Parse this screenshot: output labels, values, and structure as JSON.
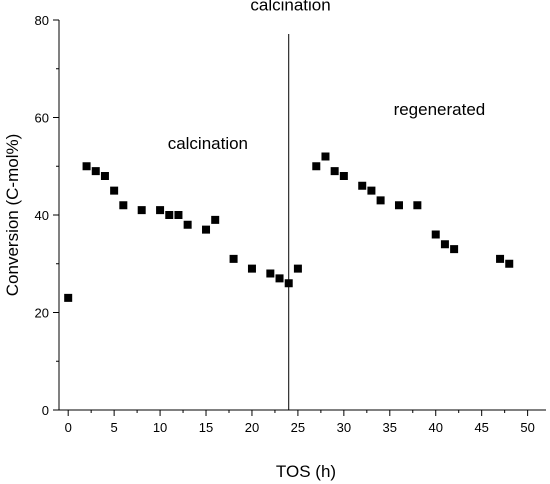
{
  "chart_data": {
    "type": "scatter",
    "xlabel": "TOS (h)",
    "ylabel": "Conversion (C-mol%)",
    "xlim": [
      -1,
      52
    ],
    "ylim": [
      0,
      80
    ],
    "x_ticks": [
      0,
      5,
      10,
      15,
      20,
      25,
      30,
      35,
      40,
      45,
      50
    ],
    "y_ticks": [
      0,
      20,
      40,
      60,
      80
    ],
    "marker": "square",
    "marker_color": "#000000",
    "series": [
      {
        "x": [
          0,
          2,
          3,
          4,
          5,
          6,
          8,
          10,
          11,
          12,
          13,
          15,
          16,
          18,
          20,
          22,
          23,
          24,
          25,
          27,
          28,
          29,
          30,
          32,
          33,
          34,
          36,
          38,
          40,
          41,
          42,
          47,
          48
        ],
        "y": [
          23,
          50,
          49,
          48,
          45,
          42,
          41,
          41,
          40,
          40,
          38,
          37,
          39,
          31,
          29,
          28,
          27,
          26,
          29,
          50,
          52,
          49,
          48,
          46,
          45,
          43,
          42,
          42,
          36,
          34,
          33,
          31,
          30
        ]
      }
    ],
    "vline_x": 24,
    "annotations": [
      {
        "text": "calcination",
        "x": 15.2,
        "y": 53.5
      },
      {
        "text": "calcination",
        "x": 24.2,
        "y": 82
      },
      {
        "text": "regenerated",
        "x": 40.4,
        "y": 60.5
      }
    ]
  }
}
